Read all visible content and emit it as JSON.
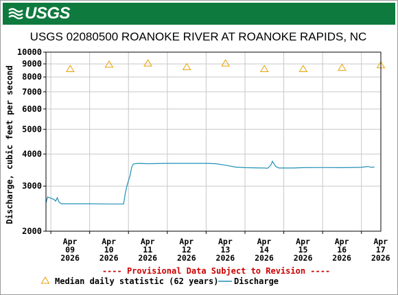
{
  "header": {
    "logo_text": "USGS",
    "brand_color": "#0e7a3e"
  },
  "chart_data": {
    "type": "line",
    "title": "USGS 02080500 ROANOKE RIVER AT ROANOKE RAPIDS, NC",
    "ylabel": "Discharge, cubic feet per second",
    "xlabel": "",
    "yscale": "log",
    "ylim": [
      2000,
      10000
    ],
    "yticks": [
      2000,
      3000,
      4000,
      5000,
      6000,
      7000,
      8000,
      9000,
      10000
    ],
    "ytick_labels": [
      "2000",
      "3000",
      "4000",
      "5000",
      "6000",
      "7000",
      "8000",
      "9000",
      "10000"
    ],
    "xlim": [
      "2026-04-08T21:00",
      "2026-04-17T12:00"
    ],
    "xticks": [
      {
        "x": "2026-04-09",
        "lines": [
          "Apr",
          "09",
          "2026"
        ]
      },
      {
        "x": "2026-04-10",
        "lines": [
          "Apr",
          "10",
          "2026"
        ]
      },
      {
        "x": "2026-04-11",
        "lines": [
          "Apr",
          "11",
          "2026"
        ]
      },
      {
        "x": "2026-04-12",
        "lines": [
          "Apr",
          "12",
          "2026"
        ]
      },
      {
        "x": "2026-04-13",
        "lines": [
          "Apr",
          "13",
          "2026"
        ]
      },
      {
        "x": "2026-04-14",
        "lines": [
          "Apr",
          "14",
          "2026"
        ]
      },
      {
        "x": "2026-04-15",
        "lines": [
          "Apr",
          "15",
          "2026"
        ]
      },
      {
        "x": "2026-04-16",
        "lines": [
          "Apr",
          "16",
          "2026"
        ]
      },
      {
        "x": "2026-04-17",
        "lines": [
          "Apr",
          "17",
          "2026"
        ]
      }
    ],
    "grid": true,
    "provisional_note": "---- Provisional Data Subject to Revision ----",
    "series": [
      {
        "name": "Median daily statistic (62 years)",
        "marker": "triangle",
        "color": "#e8a000",
        "points": [
          {
            "x": "2026-04-09T12:00",
            "y": 8600
          },
          {
            "x": "2026-04-10T12:00",
            "y": 8950
          },
          {
            "x": "2026-04-11T12:00",
            "y": 9050
          },
          {
            "x": "2026-04-12T12:00",
            "y": 8750
          },
          {
            "x": "2026-04-13T12:00",
            "y": 9050
          },
          {
            "x": "2026-04-14T12:00",
            "y": 8600
          },
          {
            "x": "2026-04-15T12:00",
            "y": 8600
          },
          {
            "x": "2026-04-16T12:00",
            "y": 8700
          },
          {
            "x": "2026-04-17T12:00",
            "y": 8900
          }
        ]
      },
      {
        "name": "Discharge",
        "marker": "line",
        "color": "#1f8fb5",
        "points": [
          {
            "x": "2026-04-08T21:00",
            "y": 2580
          },
          {
            "x": "2026-04-08T22:00",
            "y": 2720
          },
          {
            "x": "2026-04-09T00:00",
            "y": 2690
          },
          {
            "x": "2026-04-09T02:00",
            "y": 2660
          },
          {
            "x": "2026-04-09T03:00",
            "y": 2620
          },
          {
            "x": "2026-04-09T04:00",
            "y": 2700
          },
          {
            "x": "2026-04-09T05:00",
            "y": 2600
          },
          {
            "x": "2026-04-09T06:30",
            "y": 2560
          },
          {
            "x": "2026-04-09T08:00",
            "y": 2560
          },
          {
            "x": "2026-04-09T12:00",
            "y": 2560
          },
          {
            "x": "2026-04-10T00:00",
            "y": 2560
          },
          {
            "x": "2026-04-10T12:00",
            "y": 2555
          },
          {
            "x": "2026-04-10T21:00",
            "y": 2555
          },
          {
            "x": "2026-04-10T22:00",
            "y": 2800
          },
          {
            "x": "2026-04-10T23:00",
            "y": 3000
          },
          {
            "x": "2026-04-11T00:00",
            "y": 3150
          },
          {
            "x": "2026-04-11T01:00",
            "y": 3300
          },
          {
            "x": "2026-04-11T02:00",
            "y": 3550
          },
          {
            "x": "2026-04-11T03:00",
            "y": 3660
          },
          {
            "x": "2026-04-11T06:00",
            "y": 3680
          },
          {
            "x": "2026-04-11T12:00",
            "y": 3670
          },
          {
            "x": "2026-04-12T00:00",
            "y": 3680
          },
          {
            "x": "2026-04-12T12:00",
            "y": 3680
          },
          {
            "x": "2026-04-13T00:00",
            "y": 3680
          },
          {
            "x": "2026-04-13T06:00",
            "y": 3670
          },
          {
            "x": "2026-04-13T12:00",
            "y": 3620
          },
          {
            "x": "2026-04-13T18:00",
            "y": 3560
          },
          {
            "x": "2026-04-14T00:00",
            "y": 3540
          },
          {
            "x": "2026-04-14T12:00",
            "y": 3530
          },
          {
            "x": "2026-04-14T14:00",
            "y": 3520
          },
          {
            "x": "2026-04-14T16:00",
            "y": 3620
          },
          {
            "x": "2026-04-14T17:00",
            "y": 3750
          },
          {
            "x": "2026-04-14T19:00",
            "y": 3580
          },
          {
            "x": "2026-04-14T21:00",
            "y": 3530
          },
          {
            "x": "2026-04-15T06:00",
            "y": 3530
          },
          {
            "x": "2026-04-15T12:00",
            "y": 3540
          },
          {
            "x": "2026-04-16T00:00",
            "y": 3545
          },
          {
            "x": "2026-04-16T12:00",
            "y": 3540
          },
          {
            "x": "2026-04-17T00:00",
            "y": 3550
          },
          {
            "x": "2026-04-17T04:00",
            "y": 3580
          },
          {
            "x": "2026-04-17T06:00",
            "y": 3550
          },
          {
            "x": "2026-04-17T08:00",
            "y": 3560
          }
        ]
      }
    ],
    "legend": {
      "placement": "bottom",
      "entries": [
        {
          "label": "Median daily statistic (62 years)",
          "marker": "triangle"
        },
        {
          "label": "Discharge",
          "marker": "line"
        }
      ]
    }
  }
}
